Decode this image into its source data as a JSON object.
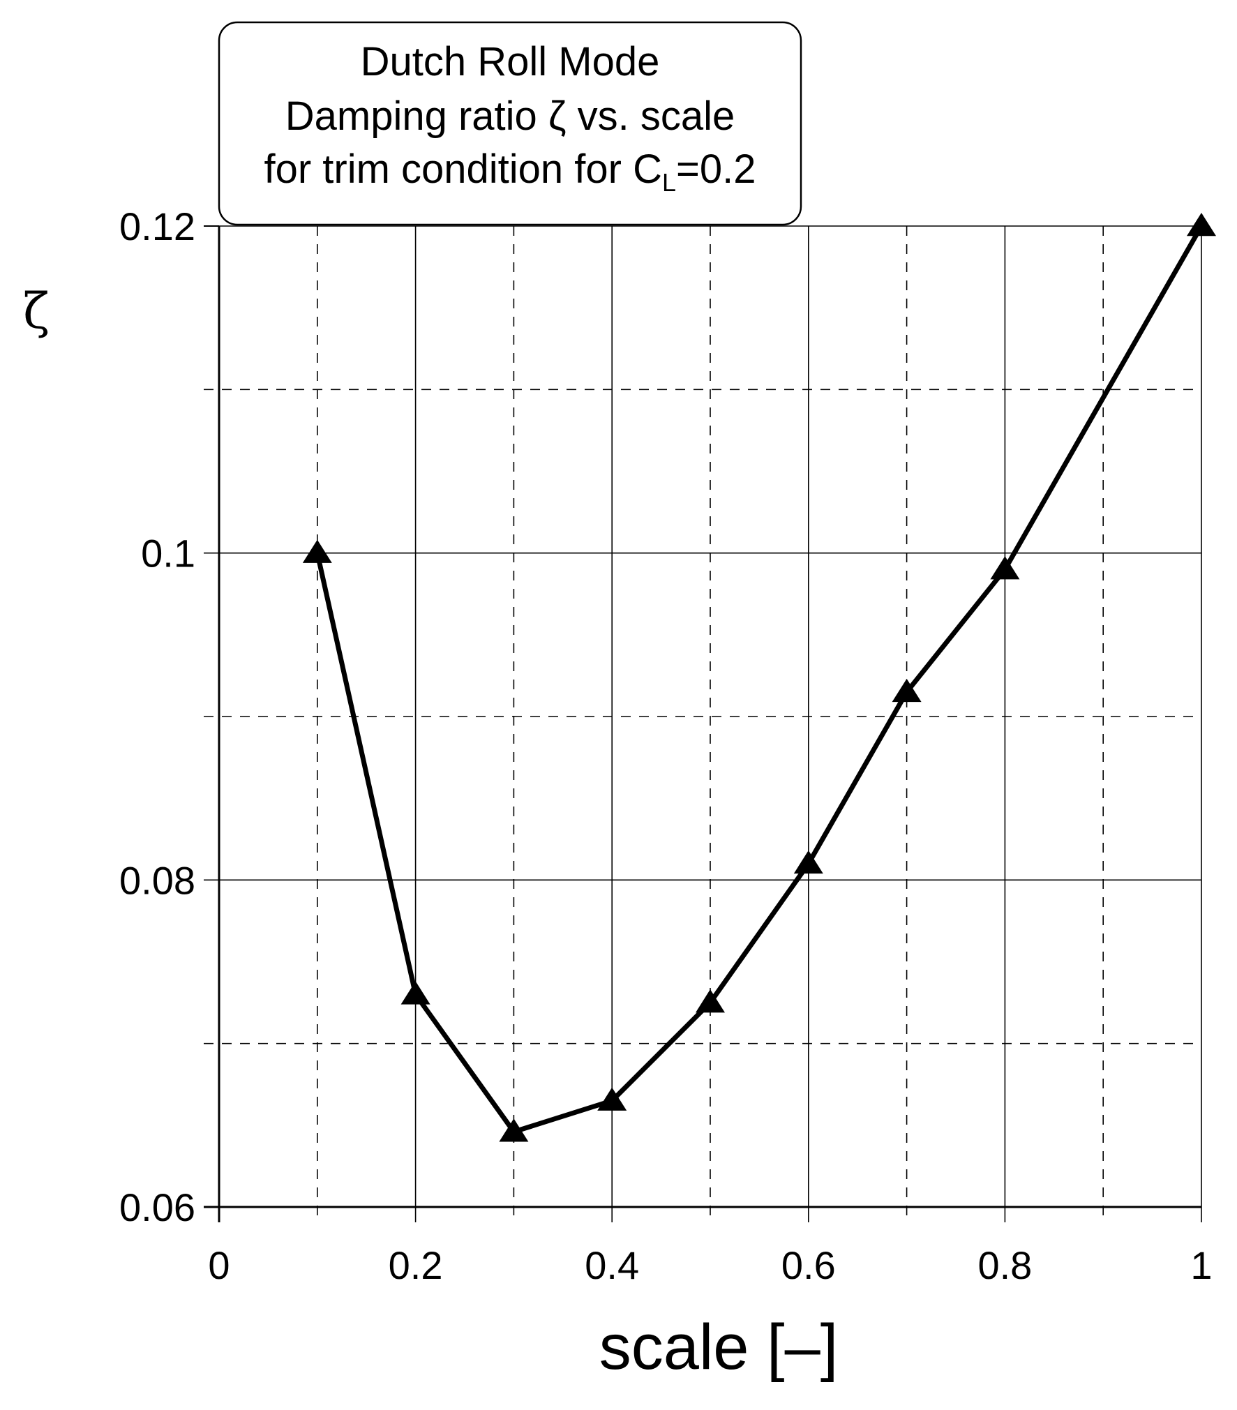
{
  "chart_data": {
    "type": "line",
    "title_lines": [
      "Dutch Roll Mode",
      "Damping ratio ζ vs. scale"
    ],
    "title_line3": {
      "prefix": "for trim condition for C",
      "subscript": "L",
      "suffix": "=0.2"
    },
    "xlabel": "scale [–]",
    "ylabel": "ζ",
    "xlim": [
      0,
      1
    ],
    "ylim": [
      0.06,
      0.12
    ],
    "x_ticks": [
      0,
      0.2,
      0.4,
      0.6,
      0.8,
      1
    ],
    "x_tick_labels": [
      "0",
      "0.2",
      "0.4",
      "0.6",
      "0.8",
      "1"
    ],
    "y_ticks": [
      0.06,
      0.08,
      0.1,
      0.12
    ],
    "y_tick_labels": [
      "0.06",
      "0.08",
      "0.1",
      "0.12"
    ],
    "x_minor_ticks": [
      0.1,
      0.3,
      0.5,
      0.7,
      0.9
    ],
    "y_minor_ticks": [
      0.07,
      0.09,
      0.11
    ],
    "grid": true,
    "marker": "triangle",
    "line_color": "#000000",
    "series": [
      {
        "x": [
          0.1,
          0.2,
          0.3,
          0.4,
          0.5,
          0.6,
          0.7,
          0.8,
          1.0
        ],
        "y": [
          0.1,
          0.073,
          0.0646,
          0.0665,
          0.0725,
          0.081,
          0.0915,
          0.099,
          0.12
        ]
      }
    ]
  }
}
